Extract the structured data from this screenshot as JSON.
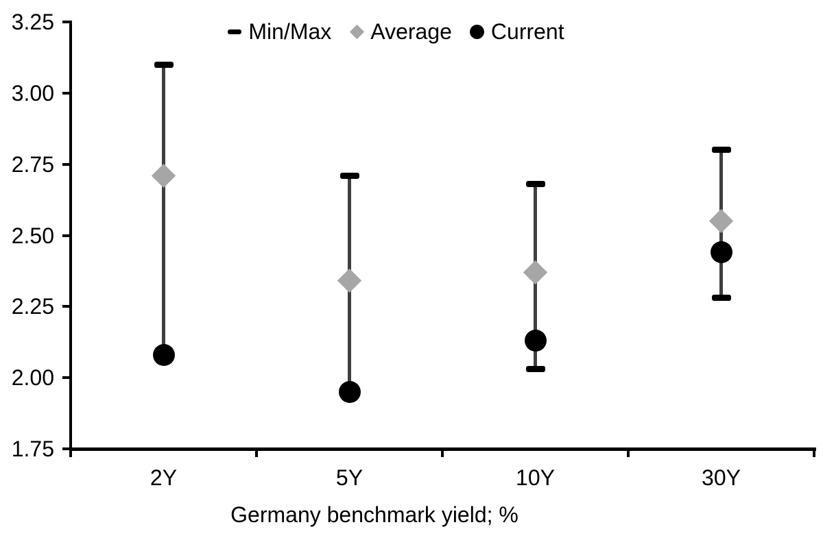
{
  "chart_data": {
    "type": "scatter",
    "subtype": "min-max-range-with-markers",
    "title": "",
    "xlabel": "Germany benchmark yield; %",
    "ylabel": "",
    "categories": [
      "2Y",
      "5Y",
      "10Y",
      "30Y"
    ],
    "ylim": [
      1.75,
      3.25
    ],
    "ytick_labels": [
      "3.25",
      "3.00",
      "2.75",
      "2.50",
      "2.25",
      "2.00",
      "1.75"
    ],
    "grid": false,
    "legend_position": "top-center",
    "legend": [
      {
        "label": "Min/Max",
        "marker": "dash"
      },
      {
        "label": "Average",
        "marker": "diamond"
      },
      {
        "label": "Current",
        "marker": "circle"
      }
    ],
    "series": [
      {
        "name": "Min/Max",
        "role": "range",
        "min": [
          2.08,
          1.95,
          2.03,
          2.28
        ],
        "max": [
          3.1,
          2.71,
          2.68,
          2.8
        ],
        "cap_color": "#000000",
        "line_color": "#3f3f3f"
      },
      {
        "name": "Average",
        "role": "point",
        "marker": "diamond",
        "color": "#a6a6a6",
        "values": [
          2.71,
          2.34,
          2.37,
          2.55
        ]
      },
      {
        "name": "Current",
        "role": "point",
        "marker": "circle",
        "color": "#000000",
        "values": [
          2.08,
          1.95,
          2.13,
          2.44
        ]
      }
    ],
    "colors": {
      "axis": "#000000",
      "text": "#000000",
      "background": "#ffffff",
      "range_line": "#3f3f3f",
      "average_marker": "#a6a6a6",
      "current_marker": "#000000"
    }
  }
}
